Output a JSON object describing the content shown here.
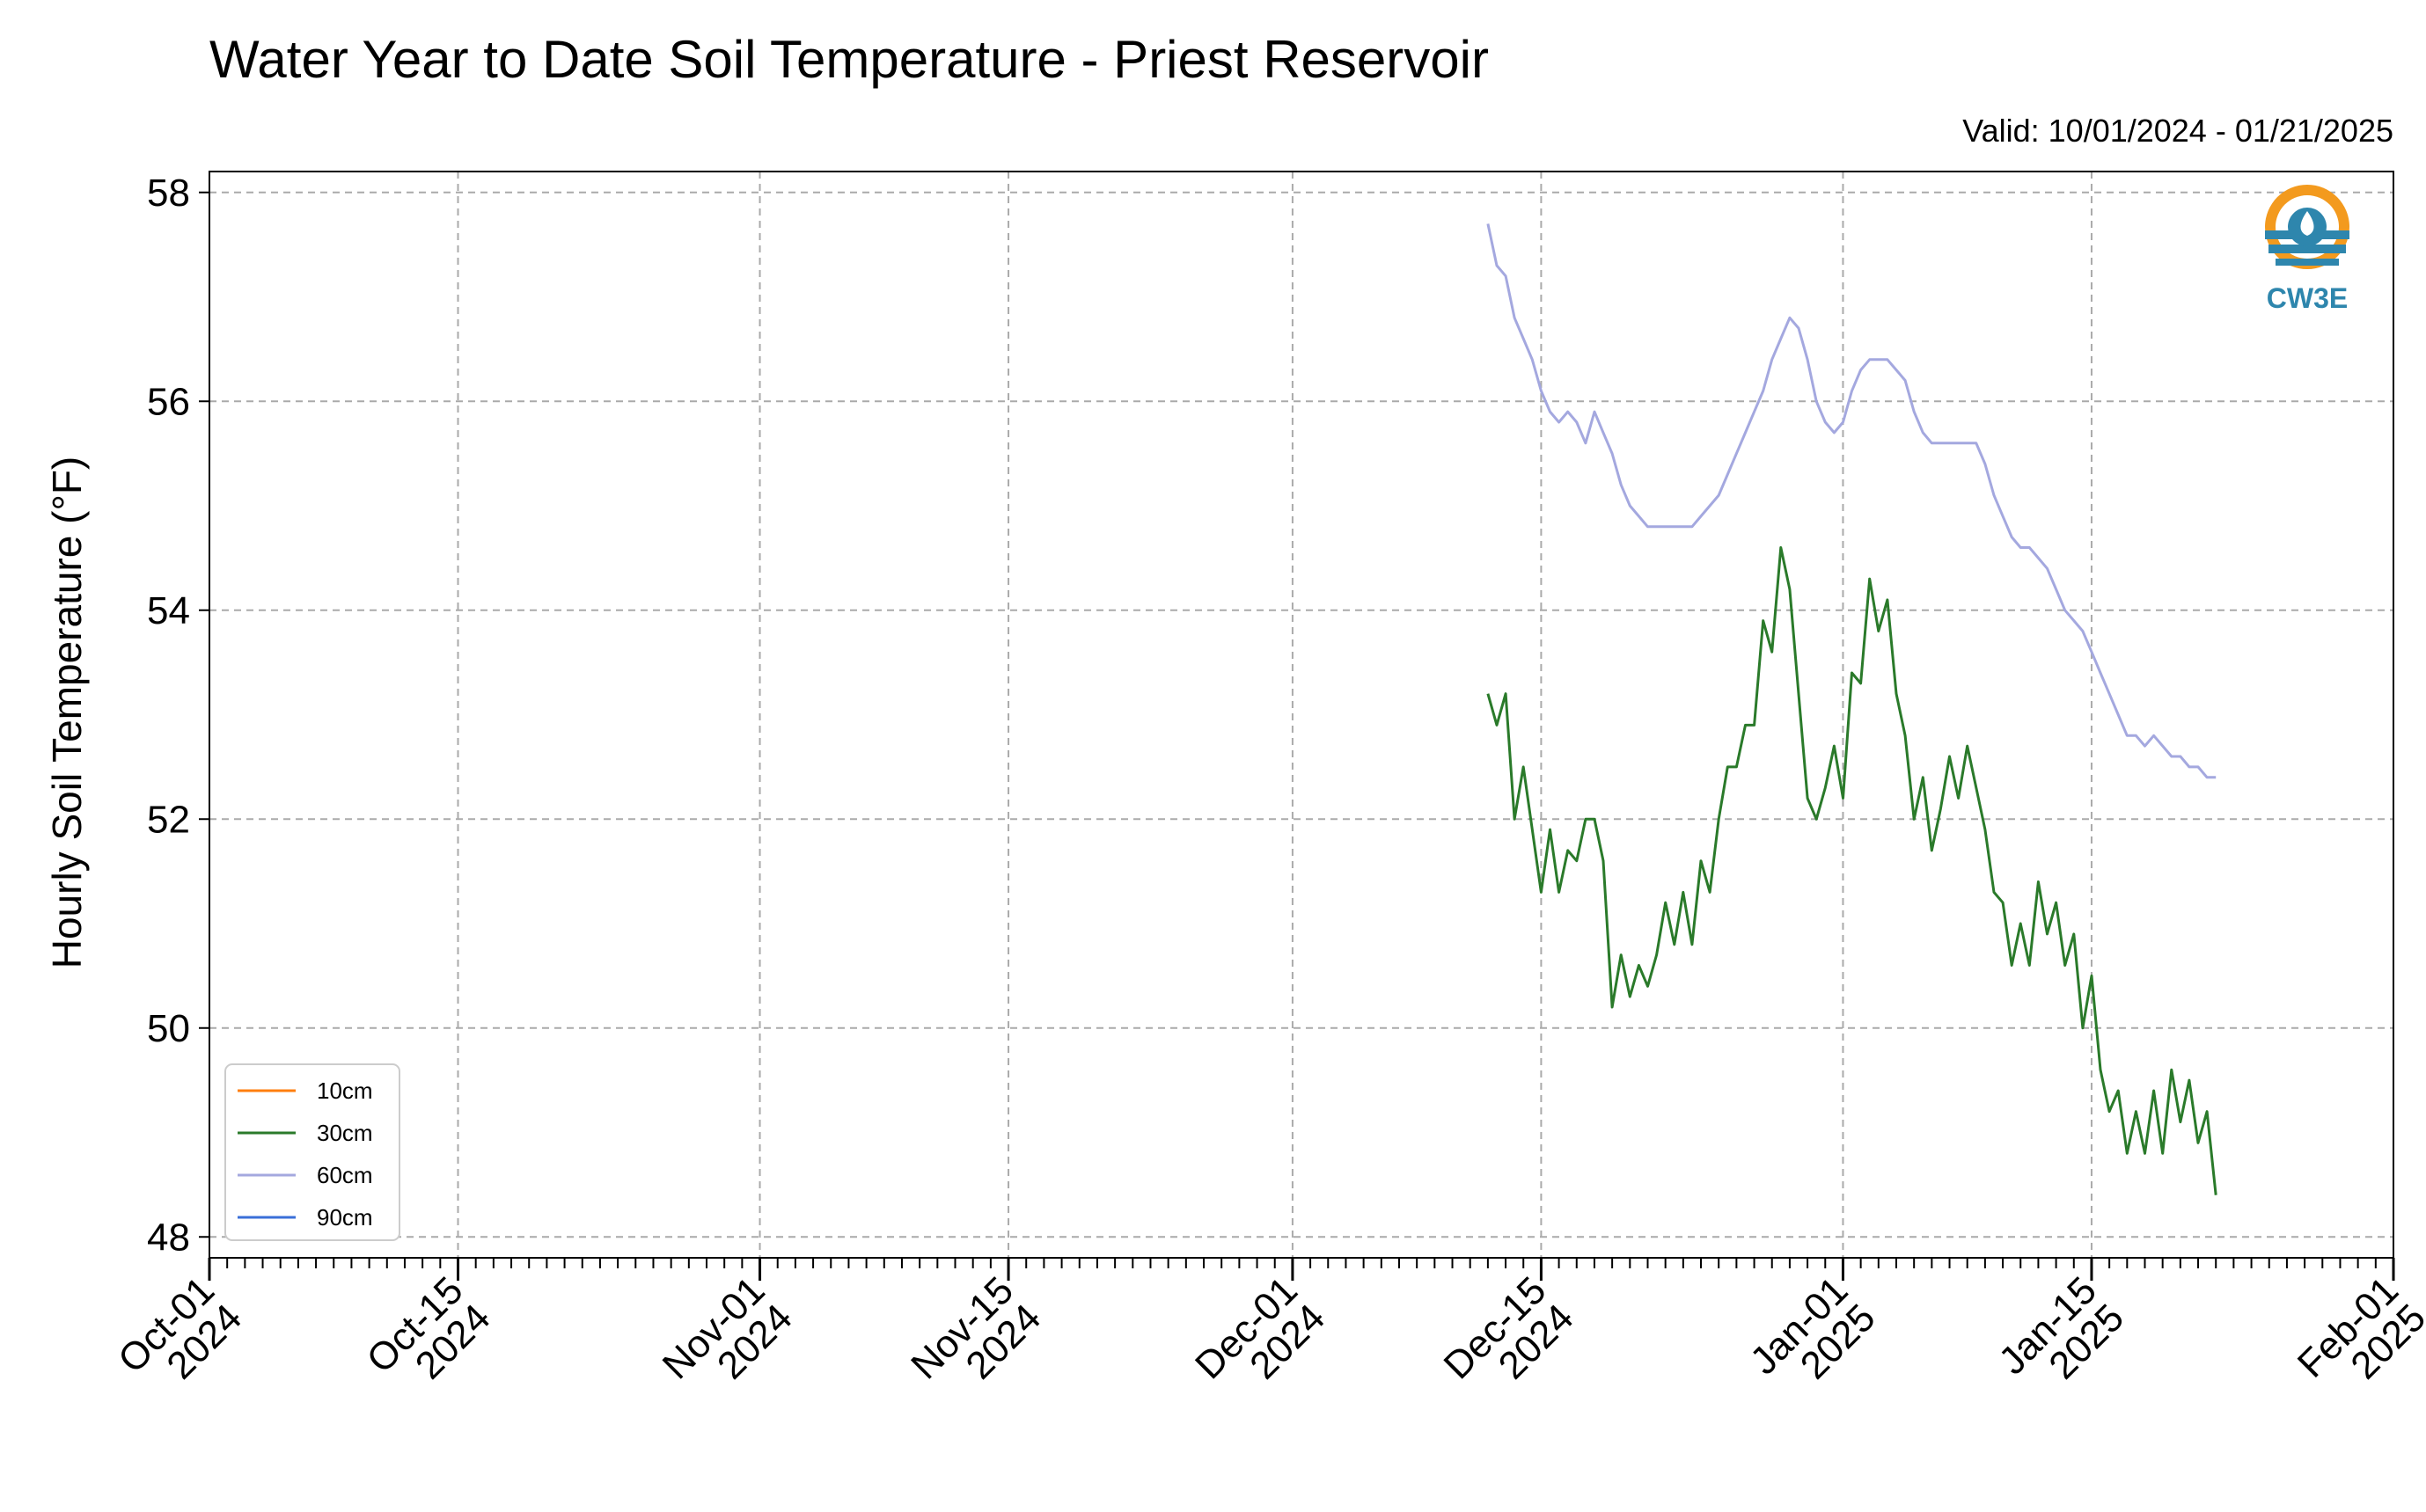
{
  "chart_data": {
    "type": "line",
    "title": "Water Year to Date Soil Temperature - Priest Reservoir",
    "subtitle": "Valid: 10/01/2024 - 01/21/2025",
    "xlabel": "",
    "ylabel": "Hourly Soil Temperature (°F)",
    "xlim": [
      "2024-10-01",
      "2025-02-01"
    ],
    "ylim": [
      47.8,
      58.2
    ],
    "yticks": [
      48,
      50,
      52,
      54,
      56,
      58
    ],
    "xticks": [
      {
        "date": "2024-10-01",
        "label": [
          "Oct-01",
          "2024"
        ]
      },
      {
        "date": "2024-10-15",
        "label": [
          "Oct-15",
          "2024"
        ]
      },
      {
        "date": "2024-11-01",
        "label": [
          "Nov-01",
          "2024"
        ]
      },
      {
        "date": "2024-11-15",
        "label": [
          "Nov-15",
          "2024"
        ]
      },
      {
        "date": "2024-12-01",
        "label": [
          "Dec-01",
          "2024"
        ]
      },
      {
        "date": "2024-12-15",
        "label": [
          "Dec-15",
          "2024"
        ]
      },
      {
        "date": "2025-01-01",
        "label": [
          "Jan-01",
          "2025"
        ]
      },
      {
        "date": "2025-01-15",
        "label": [
          "Jan-15",
          "2025"
        ]
      },
      {
        "date": "2025-02-01",
        "label": [
          "Feb-01",
          "2025"
        ]
      }
    ],
    "grid": true,
    "legend_position": "lower-left",
    "series": [
      {
        "name": "10cm",
        "color": "#ff7f0e",
        "points": []
      },
      {
        "name": "30cm",
        "color": "#2a7a2a",
        "points": [
          [
            "2024-12-12",
            53.2
          ],
          [
            "2024-12-12T12",
            52.9
          ],
          [
            "2024-12-13",
            53.2
          ],
          [
            "2024-12-13T12",
            52.0
          ],
          [
            "2024-12-14",
            52.5
          ],
          [
            "2024-12-14T12",
            51.9
          ],
          [
            "2024-12-15",
            51.3
          ],
          [
            "2024-12-15T12",
            51.9
          ],
          [
            "2024-12-16",
            51.3
          ],
          [
            "2024-12-16T12",
            51.7
          ],
          [
            "2024-12-17",
            51.6
          ],
          [
            "2024-12-17T12",
            52.0
          ],
          [
            "2024-12-18",
            52.0
          ],
          [
            "2024-12-18T12",
            51.6
          ],
          [
            "2024-12-19",
            50.2
          ],
          [
            "2024-12-19T12",
            50.7
          ],
          [
            "2024-12-20",
            50.3
          ],
          [
            "2024-12-20T12",
            50.6
          ],
          [
            "2024-12-21",
            50.4
          ],
          [
            "2024-12-21T12",
            50.7
          ],
          [
            "2024-12-22",
            51.2
          ],
          [
            "2024-12-22T12",
            50.8
          ],
          [
            "2024-12-23",
            51.3
          ],
          [
            "2024-12-23T12",
            50.8
          ],
          [
            "2024-12-24",
            51.6
          ],
          [
            "2024-12-24T12",
            51.3
          ],
          [
            "2024-12-25",
            52.0
          ],
          [
            "2024-12-25T12",
            52.5
          ],
          [
            "2024-12-26",
            52.5
          ],
          [
            "2024-12-26T12",
            52.9
          ],
          [
            "2024-12-27",
            52.9
          ],
          [
            "2024-12-27T12",
            53.9
          ],
          [
            "2024-12-28",
            53.6
          ],
          [
            "2024-12-28T12",
            54.6
          ],
          [
            "2024-12-29",
            54.2
          ],
          [
            "2024-12-29T12",
            53.2
          ],
          [
            "2024-12-30",
            52.2
          ],
          [
            "2024-12-30T12",
            52.0
          ],
          [
            "2024-12-31",
            52.3
          ],
          [
            "2024-12-31T12",
            52.7
          ],
          [
            "2025-01-01",
            52.2
          ],
          [
            "2025-01-01T12",
            53.4
          ],
          [
            "2025-01-02",
            53.3
          ],
          [
            "2025-01-02T12",
            54.3
          ],
          [
            "2025-01-03",
            53.8
          ],
          [
            "2025-01-03T12",
            54.1
          ],
          [
            "2025-01-04",
            53.2
          ],
          [
            "2025-01-04T12",
            52.8
          ],
          [
            "2025-01-05",
            52.0
          ],
          [
            "2025-01-05T12",
            52.4
          ],
          [
            "2025-01-06",
            51.7
          ],
          [
            "2025-01-06T12",
            52.1
          ],
          [
            "2025-01-07",
            52.6
          ],
          [
            "2025-01-07T12",
            52.2
          ],
          [
            "2025-01-08",
            52.7
          ],
          [
            "2025-01-08T12",
            52.3
          ],
          [
            "2025-01-09",
            51.9
          ],
          [
            "2025-01-09T12",
            51.3
          ],
          [
            "2025-01-10",
            51.2
          ],
          [
            "2025-01-10T12",
            50.6
          ],
          [
            "2025-01-11",
            51.0
          ],
          [
            "2025-01-11T12",
            50.6
          ],
          [
            "2025-01-12",
            51.4
          ],
          [
            "2025-01-12T12",
            50.9
          ],
          [
            "2025-01-13",
            51.2
          ],
          [
            "2025-01-13T12",
            50.6
          ],
          [
            "2025-01-14",
            50.9
          ],
          [
            "2025-01-14T12",
            50.0
          ],
          [
            "2025-01-15",
            50.5
          ],
          [
            "2025-01-15T12",
            49.6
          ],
          [
            "2025-01-16",
            49.2
          ],
          [
            "2025-01-16T12",
            49.4
          ],
          [
            "2025-01-17",
            48.8
          ],
          [
            "2025-01-17T12",
            49.2
          ],
          [
            "2025-01-18",
            48.8
          ],
          [
            "2025-01-18T12",
            49.4
          ],
          [
            "2025-01-19",
            48.8
          ],
          [
            "2025-01-19T12",
            49.6
          ],
          [
            "2025-01-20",
            49.1
          ],
          [
            "2025-01-20T12",
            49.5
          ],
          [
            "2025-01-21",
            48.9
          ],
          [
            "2025-01-21T12",
            49.2
          ],
          [
            "2025-01-22",
            48.4
          ]
        ]
      },
      {
        "name": "60cm",
        "color": "#a4a8df",
        "points": [
          [
            "2024-12-12",
            57.7
          ],
          [
            "2024-12-12T12",
            57.3
          ],
          [
            "2024-12-13",
            57.2
          ],
          [
            "2024-12-13T12",
            56.8
          ],
          [
            "2024-12-14",
            56.6
          ],
          [
            "2024-12-14T12",
            56.4
          ],
          [
            "2024-12-15",
            56.1
          ],
          [
            "2024-12-15T12",
            55.9
          ],
          [
            "2024-12-16",
            55.8
          ],
          [
            "2024-12-16T12",
            55.9
          ],
          [
            "2024-12-17",
            55.8
          ],
          [
            "2024-12-17T12",
            55.6
          ],
          [
            "2024-12-18",
            55.9
          ],
          [
            "2024-12-18T12",
            55.7
          ],
          [
            "2024-12-19",
            55.5
          ],
          [
            "2024-12-19T12",
            55.2
          ],
          [
            "2024-12-20",
            55.0
          ],
          [
            "2024-12-20T12",
            54.9
          ],
          [
            "2024-12-21",
            54.8
          ],
          [
            "2024-12-21T12",
            54.8
          ],
          [
            "2024-12-22",
            54.8
          ],
          [
            "2024-12-22T12",
            54.8
          ],
          [
            "2024-12-23",
            54.8
          ],
          [
            "2024-12-23T12",
            54.8
          ],
          [
            "2024-12-24",
            54.9
          ],
          [
            "2024-12-24T12",
            55.0
          ],
          [
            "2024-12-25",
            55.1
          ],
          [
            "2024-12-25T12",
            55.3
          ],
          [
            "2024-12-26",
            55.5
          ],
          [
            "2024-12-26T12",
            55.7
          ],
          [
            "2024-12-27",
            55.9
          ],
          [
            "2024-12-27T12",
            56.1
          ],
          [
            "2024-12-28",
            56.4
          ],
          [
            "2024-12-28T12",
            56.6
          ],
          [
            "2024-12-29",
            56.8
          ],
          [
            "2024-12-29T12",
            56.7
          ],
          [
            "2024-12-30",
            56.4
          ],
          [
            "2024-12-30T12",
            56.0
          ],
          [
            "2024-12-31",
            55.8
          ],
          [
            "2024-12-31T12",
            55.7
          ],
          [
            "2025-01-01",
            55.8
          ],
          [
            "2025-01-01T12",
            56.1
          ],
          [
            "2025-01-02",
            56.3
          ],
          [
            "2025-01-02T12",
            56.4
          ],
          [
            "2025-01-03",
            56.4
          ],
          [
            "2025-01-03T12",
            56.4
          ],
          [
            "2025-01-04",
            56.3
          ],
          [
            "2025-01-04T12",
            56.2
          ],
          [
            "2025-01-05",
            55.9
          ],
          [
            "2025-01-05T12",
            55.7
          ],
          [
            "2025-01-06",
            55.6
          ],
          [
            "2025-01-06T12",
            55.6
          ],
          [
            "2025-01-07",
            55.6
          ],
          [
            "2025-01-07T12",
            55.6
          ],
          [
            "2025-01-08",
            55.6
          ],
          [
            "2025-01-08T12",
            55.6
          ],
          [
            "2025-01-09",
            55.4
          ],
          [
            "2025-01-09T12",
            55.1
          ],
          [
            "2025-01-10",
            54.9
          ],
          [
            "2025-01-10T12",
            54.7
          ],
          [
            "2025-01-11",
            54.6
          ],
          [
            "2025-01-11T12",
            54.6
          ],
          [
            "2025-01-12",
            54.5
          ],
          [
            "2025-01-12T12",
            54.4
          ],
          [
            "2025-01-13",
            54.2
          ],
          [
            "2025-01-13T12",
            54.0
          ],
          [
            "2025-01-14",
            53.9
          ],
          [
            "2025-01-14T12",
            53.8
          ],
          [
            "2025-01-15",
            53.6
          ],
          [
            "2025-01-15T12",
            53.4
          ],
          [
            "2025-01-16",
            53.2
          ],
          [
            "2025-01-16T12",
            53.0
          ],
          [
            "2025-01-17",
            52.8
          ],
          [
            "2025-01-17T12",
            52.8
          ],
          [
            "2025-01-18",
            52.7
          ],
          [
            "2025-01-18T12",
            52.8
          ],
          [
            "2025-01-19",
            52.7
          ],
          [
            "2025-01-19T12",
            52.6
          ],
          [
            "2025-01-20",
            52.6
          ],
          [
            "2025-01-20T12",
            52.5
          ],
          [
            "2025-01-21",
            52.5
          ],
          [
            "2025-01-21T12",
            52.4
          ],
          [
            "2025-01-22",
            52.4
          ]
        ]
      },
      {
        "name": "90cm",
        "color": "#3a6fd8",
        "points": []
      }
    ]
  },
  "logo": {
    "text": "CW3E",
    "icon": "water-drop-logo-icon"
  }
}
